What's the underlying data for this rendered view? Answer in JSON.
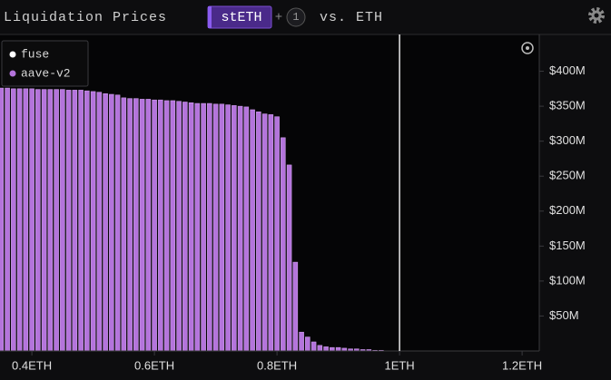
{
  "chart_data": {
    "type": "bar",
    "title": "Liquidation Prices",
    "toolbar": {
      "asset": "stETH",
      "plus": "+",
      "count": "1",
      "versus": "vs. ETH"
    },
    "x": [
      0.35,
      0.36,
      0.37,
      0.38,
      0.39,
      0.4,
      0.41,
      0.42,
      0.43,
      0.44,
      0.45,
      0.46,
      0.47,
      0.48,
      0.49,
      0.5,
      0.51,
      0.52,
      0.53,
      0.54,
      0.55,
      0.56,
      0.57,
      0.58,
      0.59,
      0.6,
      0.61,
      0.62,
      0.63,
      0.64,
      0.65,
      0.66,
      0.67,
      0.68,
      0.69,
      0.7,
      0.71,
      0.72,
      0.73,
      0.74,
      0.75,
      0.76,
      0.77,
      0.78,
      0.79,
      0.8,
      0.81,
      0.82,
      0.83,
      0.84,
      0.85,
      0.86,
      0.87,
      0.88,
      0.89,
      0.9,
      0.91,
      0.92,
      0.93,
      0.94,
      0.95,
      0.96,
      0.97
    ],
    "series": [
      {
        "name": "fuse",
        "color": "#ffffff"
      },
      {
        "name": "aave-v2",
        "color": "#b474dc",
        "values": [
          376000000,
          376000000,
          375000000,
          375000000,
          375000000,
          375000000,
          374000000,
          374000000,
          374000000,
          374000000,
          374000000,
          373000000,
          373000000,
          373000000,
          372000000,
          371000000,
          370000000,
          368000000,
          367000000,
          366000000,
          362000000,
          361000000,
          361000000,
          360000000,
          360000000,
          359000000,
          359000000,
          358000000,
          358000000,
          357000000,
          356000000,
          355000000,
          354000000,
          354000000,
          354000000,
          353000000,
          353000000,
          352000000,
          351000000,
          350000000,
          349000000,
          345000000,
          342000000,
          339000000,
          338000000,
          335000000,
          305000000,
          266000000,
          127000000,
          27000000,
          20000000,
          13000000,
          8000000,
          6000000,
          5000000,
          5000000,
          4000000,
          3000000,
          3000000,
          2000000,
          2000000,
          1000000,
          1000000
        ]
      }
    ],
    "xlim": [
      0.348,
      1.228
    ],
    "xticks": [
      {
        "value": 0.4,
        "label": "0.4ETH"
      },
      {
        "value": 0.6,
        "label": "0.6ETH"
      },
      {
        "value": 0.8,
        "label": "0.8ETH"
      },
      {
        "value": 1,
        "label": "1ETH"
      },
      {
        "value": 1.2,
        "label": "1.2ETH"
      }
    ],
    "ylim": [
      0,
      450000000
    ],
    "yticks": [
      {
        "value": 50000000,
        "label": "$50M"
      },
      {
        "value": 100000000,
        "label": "$100M"
      },
      {
        "value": 150000000,
        "label": "$150M"
      },
      {
        "value": 200000000,
        "label": "$200M"
      },
      {
        "value": 250000000,
        "label": "$250M"
      },
      {
        "value": 300000000,
        "label": "$300M"
      },
      {
        "value": 350000000,
        "label": "$350M"
      },
      {
        "value": 400000000,
        "label": "$400M"
      }
    ],
    "reference_x": 1,
    "legend": "top-left"
  }
}
